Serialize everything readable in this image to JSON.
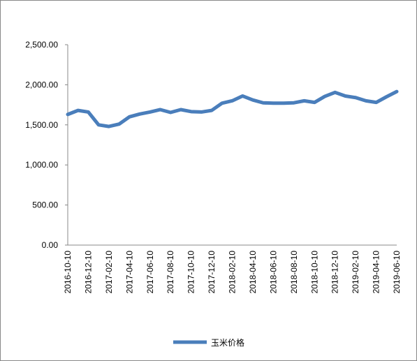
{
  "chart_data": {
    "type": "line",
    "categories": [
      "2016-10-10",
      null,
      "2016-12-10",
      null,
      "2017-02-10",
      null,
      "2017-04-10",
      null,
      "2017-06-10",
      null,
      "2017-08-10",
      null,
      "2017-10-10",
      null,
      "2017-12-10",
      null,
      "2018-02-10",
      null,
      "2018-04-10",
      null,
      "2018-06-10",
      null,
      "2018-08-10",
      null,
      "2018-10-10",
      null,
      "2018-12-10",
      null,
      "2019-02-10",
      null,
      "2019-04-10",
      null,
      "2019-06-10"
    ],
    "series": [
      {
        "name": "玉米价格",
        "color": "#4a7ebb",
        "values": [
          1630,
          1680,
          1660,
          1500,
          1480,
          1510,
          1600,
          1635,
          1660,
          1690,
          1655,
          1690,
          1665,
          1660,
          1680,
          1770,
          1800,
          1860,
          1810,
          1775,
          1770,
          1770,
          1775,
          1800,
          1780,
          1855,
          1905,
          1860,
          1840,
          1800,
          1780,
          1850,
          1915
        ]
      }
    ],
    "ylim": [
      0,
      2500
    ],
    "yticks": [
      {
        "value": 0,
        "label": "0.00"
      },
      {
        "value": 500,
        "label": "500.00"
      },
      {
        "value": 1000,
        "label": "1,000.00"
      },
      {
        "value": 1500,
        "label": "1,500.00"
      },
      {
        "value": 2000,
        "label": "2,000.00"
      },
      {
        "value": 2500,
        "label": "2,500.00"
      }
    ],
    "grid": false,
    "legend": "bottom"
  }
}
